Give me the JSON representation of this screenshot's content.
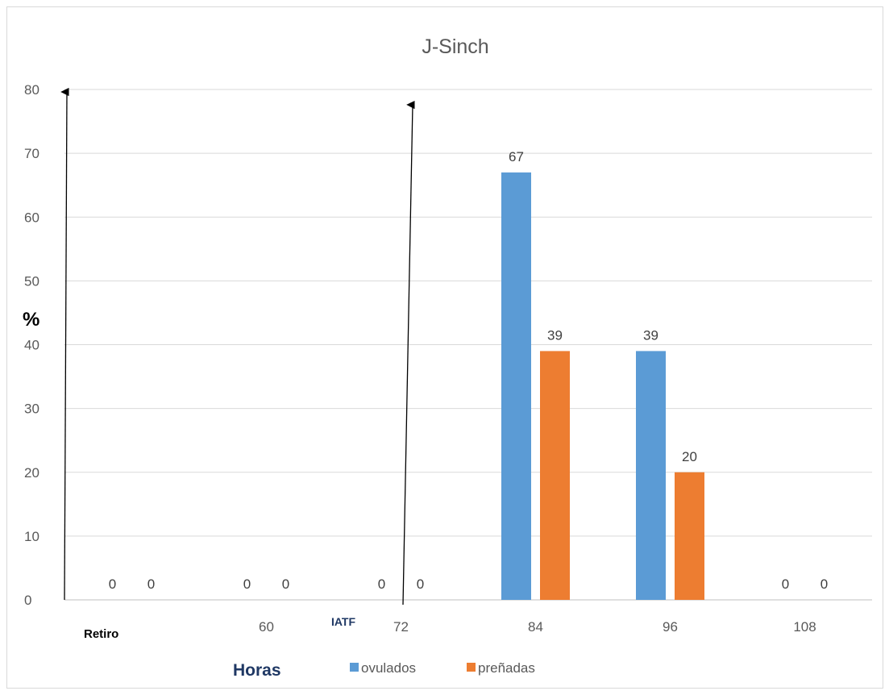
{
  "chart_data": {
    "type": "bar",
    "title": "J-Sinch",
    "ylabel": "%",
    "xlabel": "Horas",
    "ylim": [
      0,
      80
    ],
    "yticks": [
      0,
      10,
      20,
      30,
      40,
      50,
      60,
      70,
      80
    ],
    "grid": true,
    "legend_position": "bottom",
    "categories": [
      "",
      "60",
      "72",
      "84",
      "96",
      "108"
    ],
    "series": [
      {
        "name": "ovulados",
        "color": "#5b9bd5",
        "values": [
          0,
          0,
          0,
          67,
          39,
          0
        ]
      },
      {
        "name": "preñadas",
        "color": "#ed7d31",
        "values": [
          0,
          0,
          0,
          39,
          20,
          0
        ]
      }
    ],
    "annotations": [
      {
        "text": "Retiro",
        "category_index": 0
      },
      {
        "text": "IATF",
        "category_index": 2
      }
    ]
  }
}
